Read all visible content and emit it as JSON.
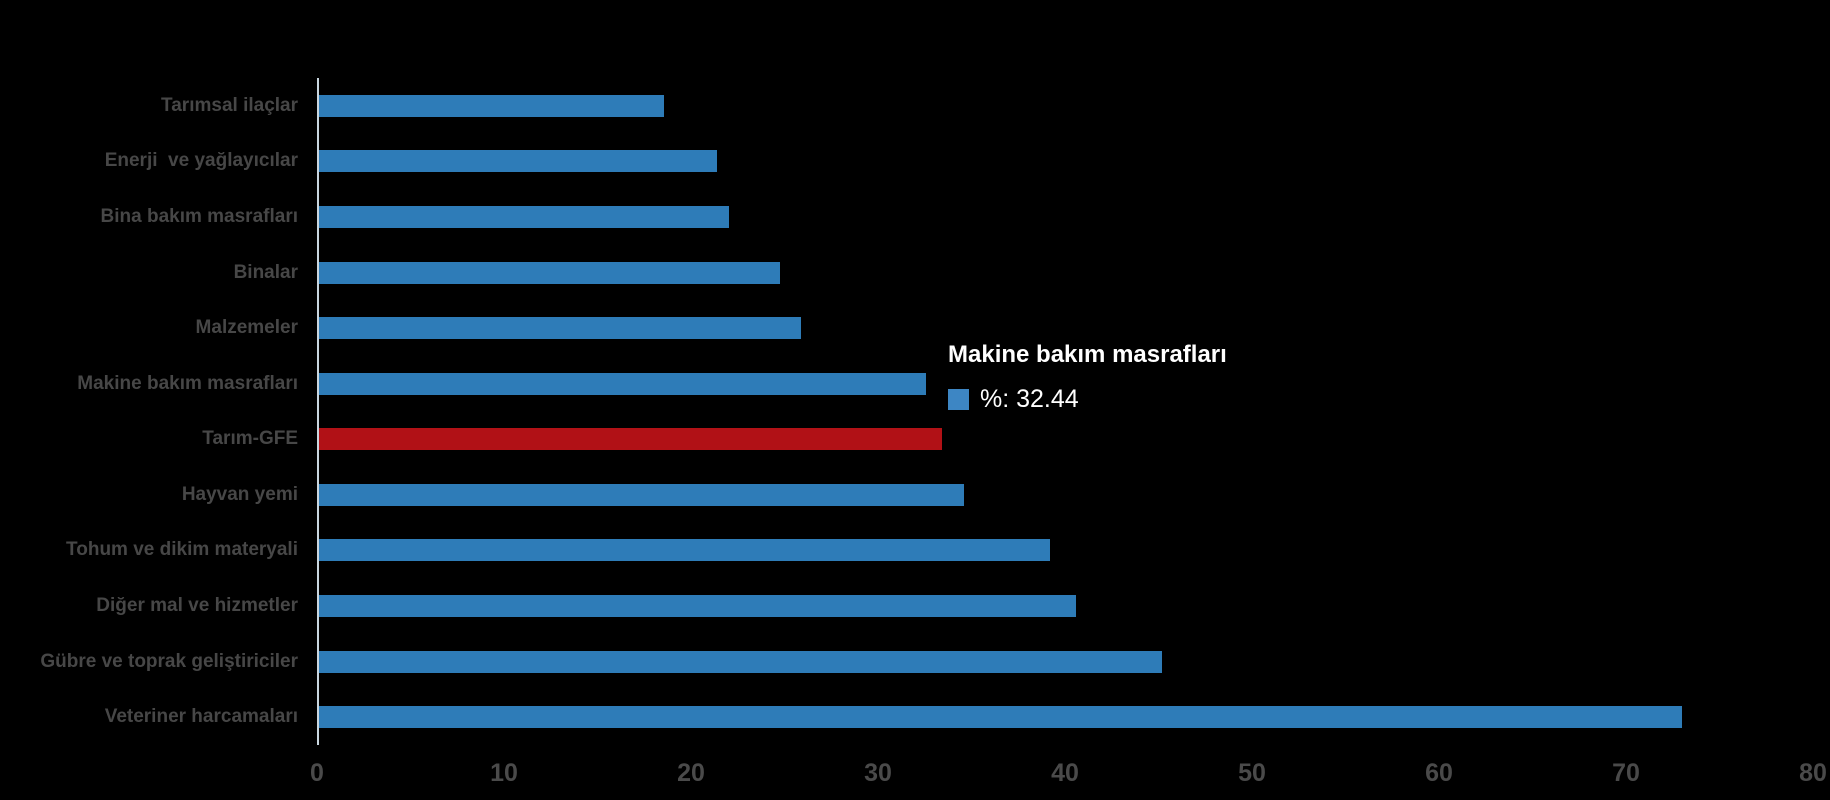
{
  "colors": {
    "background": "#000000",
    "bar_blue": "#2E7CB8",
    "bar_red": "#B11116",
    "label_gray": "#474747",
    "tick_gray": "#4A4A4A",
    "axis_line": "#C9D6DF",
    "tooltip_text": "#FFFFFF",
    "marker_blue": "#3D86C4"
  },
  "chart_data": {
    "type": "bar",
    "orientation": "horizontal",
    "title": "",
    "xlabel": "",
    "ylabel": "",
    "xlim": [
      0,
      80
    ],
    "x_ticks": [
      "0",
      "10",
      "20",
      "30",
      "40",
      "50",
      "60",
      "70",
      "80"
    ],
    "grid": false,
    "legend_position": "none",
    "series_name": "%",
    "categories": [
      "Tarımsal ilaçlar",
      "Enerji  ve yağlayıcılar",
      "Bina bakım masrafları",
      "Binalar",
      "Malzemeler",
      "Makine bakım masrafları",
      "Tarım-GFE",
      "Hayvan yemi",
      "Tohum ve dikim materyali",
      "Diğer mal ve hizmetler",
      "Gübre ve toprak geliştiriciler",
      "Veteriner harcamaları"
    ],
    "values": [
      18.45,
      21.3,
      21.9,
      24.65,
      25.8,
      32.44,
      33.3,
      34.5,
      39.1,
      40.5,
      45.1,
      72.9
    ],
    "highlight_category": "Tarım-GFE"
  },
  "tooltip": {
    "title": "Makine bakım masrafları",
    "value_label": "%: 32.44"
  }
}
